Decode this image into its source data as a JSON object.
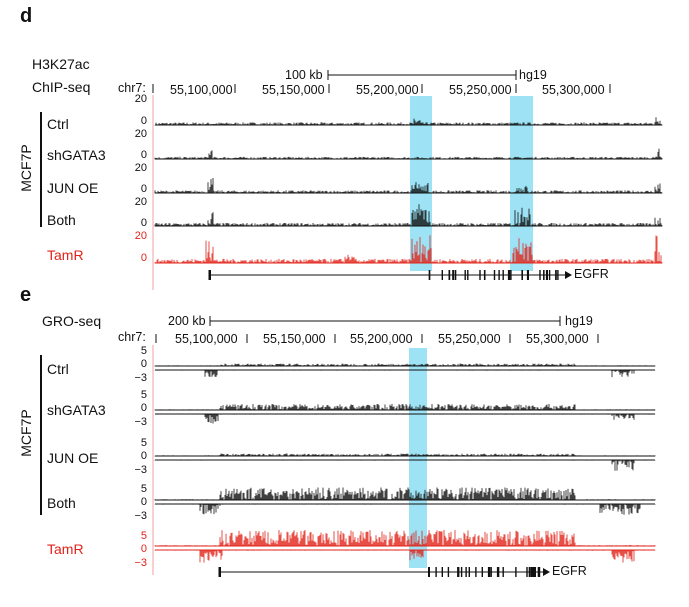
{
  "panel_d": {
    "letter": "d",
    "assay_line1": "H3K27ac",
    "assay_line2": "ChIP-seq",
    "scale_label": "100 kb",
    "genome": "hg19",
    "chrom": "chr7:",
    "coords": [
      "55,100,000",
      "55,150,000",
      "55,200,000",
      "55,250,000",
      "55,300,000"
    ],
    "group_label": "MCF7P",
    "tracks": [
      {
        "label": "Ctrl",
        "ymax": "20",
        "ymin": "0"
      },
      {
        "label": "shGATA3",
        "ymax": "20",
        "ymin": "0"
      },
      {
        "label": "JUN OE",
        "ymax": "20",
        "ymin": "0"
      },
      {
        "label": "Both",
        "ymax": "20",
        "ymin": "0"
      }
    ],
    "tamr": {
      "label": "TamR",
      "ymax": "20",
      "ymin": "0"
    },
    "gene": "EGFR"
  },
  "panel_e": {
    "letter": "e",
    "assay": "GRO-seq",
    "scale_label": "200 kb",
    "genome": "hg19",
    "chrom": "chr7:",
    "coords": [
      "55,100,000",
      "55,150,000",
      "55,200,000",
      "55,250,000",
      "55,300,000"
    ],
    "group_label": "MCF7P",
    "tracks": [
      {
        "label": "Ctrl",
        "ymax": "5",
        "zero": "0",
        "ymin": "−3"
      },
      {
        "label": "shGATA3",
        "ymax": "5",
        "zero": "0",
        "ymin": "−3"
      },
      {
        "label": "JUN OE",
        "ymax": "5",
        "zero": "0",
        "ymin": "−3"
      },
      {
        "label": "Both",
        "ymax": "5",
        "zero": "0",
        "ymin": "−3"
      }
    ],
    "tamr": {
      "label": "TamR",
      "ymax": "5",
      "zero": "0",
      "ymin": "−3"
    },
    "gene": "EGFR"
  },
  "colors": {
    "black": "#111111",
    "tamr": "#e2231a",
    "highlight": "#9de3f5"
  }
}
